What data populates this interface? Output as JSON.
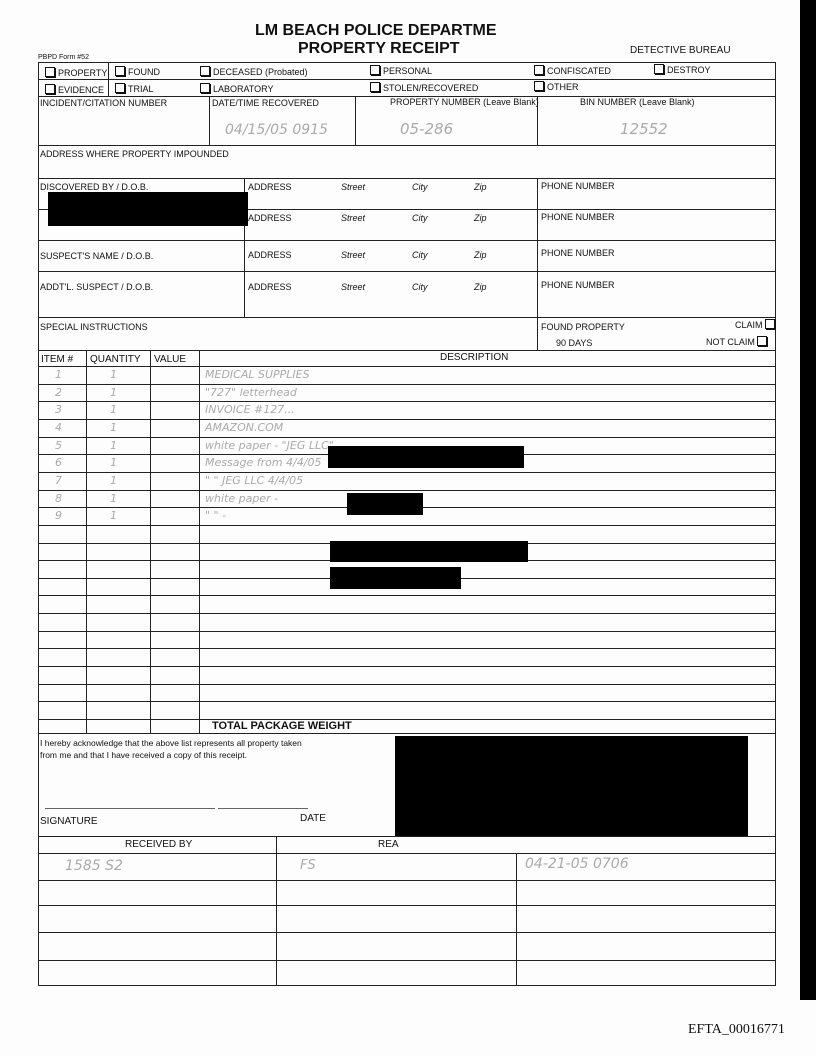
{
  "header": {
    "title1": "LM BEACH POLICE DEPARTME",
    "title2": "PROPERTY RECEIPT",
    "bureau": "DETECTIVE BUREAU",
    "form_no": "PBPD Form #52"
  },
  "checkboxes": [
    "PROPERTY",
    "FOUND",
    "DECEASED (Probated)",
    "PERSONAL",
    "CONFISCATED",
    "DESTROY",
    "EVIDENCE",
    "TRIAL",
    "LABORATORY",
    "STOLEN/RECOVERED",
    "OTHER"
  ],
  "fields": {
    "incident": "INCIDENT/CITATION NUMBER",
    "datetime": "DATE/TIME RECOVERED",
    "datetime_value": "04/15/05  0915",
    "propnum": "PROPERTY NUMBER (Leave Blank)",
    "propnum_value": "05-286",
    "bin": "BIN NUMBER (Leave Blank)",
    "bin_value": "12552",
    "address_impounded": "ADDRESS WHERE PROPERTY IMPOUNDED",
    "discovered": "DISCOVERED BY / D.O.B.",
    "suspect": "SUSPECT'S NAME / D.O.B.",
    "addtl": "ADDT'L. SUSPECT / D.O.B.",
    "address": "ADDRESS",
    "street": "Street",
    "city": "City",
    "zip": "Zip",
    "phone": "PHONE NUMBER",
    "special": "SPECIAL INSTRUCTIONS",
    "found_property": "FOUND PROPERTY",
    "days": "90 DAYS",
    "claim": "CLAIM",
    "not_claim": "NOT CLAIM"
  },
  "items": {
    "headers": [
      "ITEM #",
      "QUANTITY",
      "VALUE",
      "DESCRIPTION"
    ],
    "rows": [
      [
        "1",
        "1",
        "",
        "MEDICAL SUPPLIES"
      ],
      [
        "2",
        "1",
        "",
        "\"727\" letterhead"
      ],
      [
        "3",
        "1",
        "",
        "INVOICE #127..."
      ],
      [
        "4",
        "1",
        "",
        "AMAZON.COM"
      ],
      [
        "5",
        "1",
        "",
        "white paper - \"JEG LLC\""
      ],
      [
        "6",
        "1",
        "",
        "Message from            4/4/05"
      ],
      [
        "7",
        "1",
        "",
        "\"     \"   JEG LLC  4/4/05"
      ],
      [
        "8",
        "1",
        "",
        "white paper -"
      ],
      [
        "9",
        "1",
        "",
        "\"     \" -"
      ]
    ],
    "total_label": "TOTAL PACKAGE WEIGHT"
  },
  "ack": {
    "text1": "I hereby acknowledge that the above list represents all property taken",
    "text2": "from me and that I have received a copy of this receipt.",
    "signature": "SIGNATURE",
    "date": "DATE"
  },
  "custody": {
    "received_by": "RECEIVED BY",
    "reason": "REA",
    "rows": [
      [
        "1585 S2",
        "FS",
        "04-21-05   0706"
      ]
    ]
  },
  "footer": {
    "doc_id": "EFTA_00016771"
  }
}
